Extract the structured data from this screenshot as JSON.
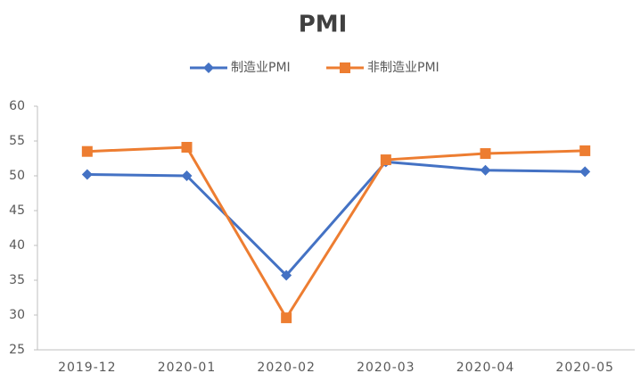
{
  "chart_data": {
    "type": "line",
    "title": "PMI",
    "categories": [
      "2019-12",
      "2020-01",
      "2020-02",
      "2020-03",
      "2020-04",
      "2020-05"
    ],
    "series": [
      {
        "name": "制造业PMI",
        "color": "#4472c4",
        "marker": "diamond",
        "values": [
          50.2,
          50.0,
          35.7,
          52.0,
          50.8,
          50.6
        ]
      },
      {
        "name": "非制造业PMI",
        "color": "#ed7d31",
        "marker": "square",
        "values": [
          53.5,
          54.1,
          29.6,
          52.3,
          53.2,
          53.6
        ]
      }
    ],
    "ylim": [
      25,
      60
    ],
    "yticks": [
      25,
      30,
      35,
      40,
      45,
      50,
      55,
      60
    ],
    "grid": false,
    "legend": "top"
  }
}
